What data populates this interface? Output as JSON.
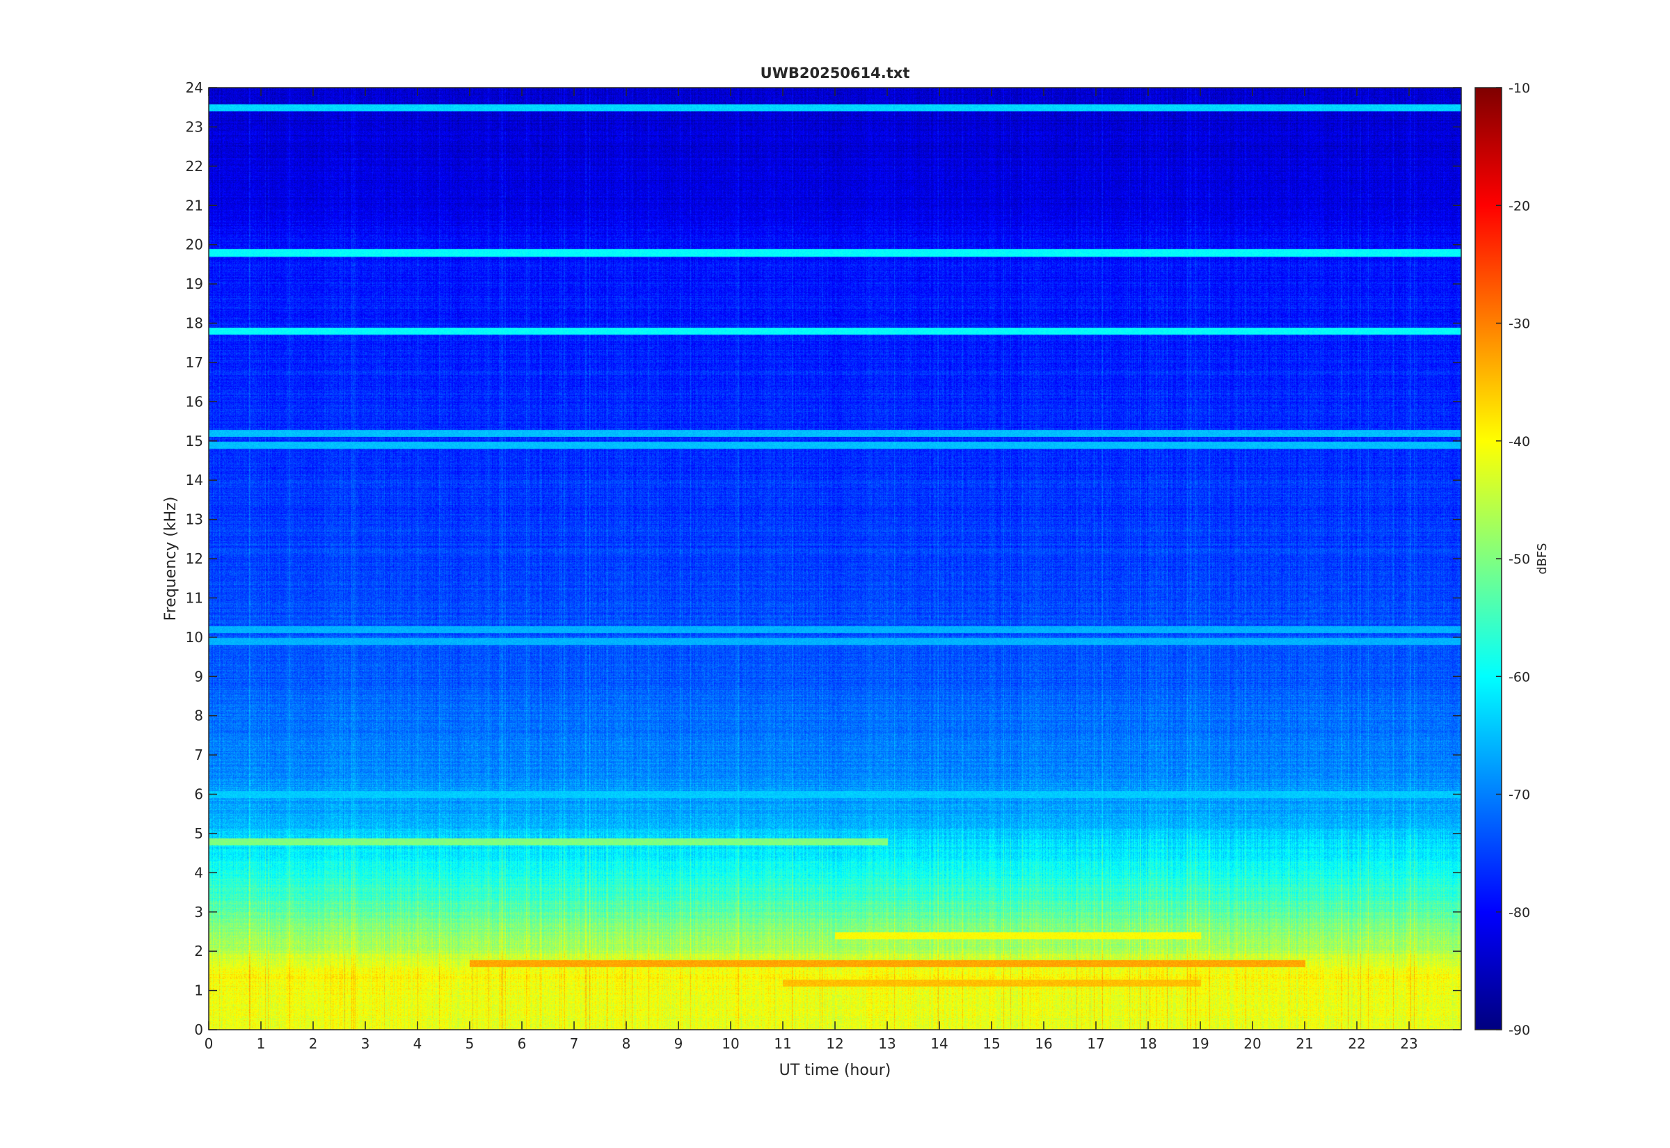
{
  "chart_data": {
    "type": "heatmap",
    "title": "UWB20250614.txt",
    "xlabel": "UT time (hour)",
    "ylabel": "Frequency (kHz)",
    "xlim": [
      0,
      24
    ],
    "ylim": [
      0,
      24
    ],
    "x_ticks": [
      "0",
      "1",
      "2",
      "3",
      "4",
      "5",
      "6",
      "7",
      "8",
      "9",
      "10",
      "11",
      "12",
      "13",
      "14",
      "15",
      "16",
      "17",
      "18",
      "19",
      "20",
      "21",
      "22",
      "23"
    ],
    "y_ticks": [
      "0",
      "1",
      "2",
      "3",
      "4",
      "5",
      "6",
      "7",
      "8",
      "9",
      "10",
      "11",
      "12",
      "13",
      "14",
      "15",
      "16",
      "17",
      "18",
      "19",
      "20",
      "21",
      "22",
      "23",
      "24"
    ],
    "colorbar": {
      "label": "dBFS",
      "range": [
        -90,
        -10
      ],
      "ticks": [
        "-10",
        "-20",
        "-30",
        "-40",
        "-50",
        "-60",
        "-70",
        "-80",
        "-90"
      ],
      "colormap": "jet"
    },
    "background_profile": [
      {
        "freq_khz": 0.0,
        "dbfs": -42
      },
      {
        "freq_khz": 0.8,
        "dbfs": -41
      },
      {
        "freq_khz": 1.5,
        "dbfs": -40
      },
      {
        "freq_khz": 2.0,
        "dbfs": -46
      },
      {
        "freq_khz": 2.6,
        "dbfs": -50
      },
      {
        "freq_khz": 3.5,
        "dbfs": -56
      },
      {
        "freq_khz": 4.5,
        "dbfs": -61
      },
      {
        "freq_khz": 5.5,
        "dbfs": -67
      },
      {
        "freq_khz": 7.0,
        "dbfs": -70
      },
      {
        "freq_khz": 9.0,
        "dbfs": -73
      },
      {
        "freq_khz": 12.0,
        "dbfs": -75
      },
      {
        "freq_khz": 16.0,
        "dbfs": -77
      },
      {
        "freq_khz": 20.0,
        "dbfs": -79
      },
      {
        "freq_khz": 21.0,
        "dbfs": -82
      },
      {
        "freq_khz": 24.0,
        "dbfs": -84
      }
    ],
    "tonal_lines": [
      {
        "freq_khz": 19.8,
        "dbfs": -60,
        "t_start": 0,
        "t_end": 24
      },
      {
        "freq_khz": 23.5,
        "dbfs": -63,
        "t_start": 0,
        "t_end": 24
      },
      {
        "freq_khz": 17.8,
        "dbfs": -60,
        "t_start": 0,
        "t_end": 24
      },
      {
        "freq_khz": 15.2,
        "dbfs": -65,
        "t_start": 0,
        "t_end": 24
      },
      {
        "freq_khz": 14.9,
        "dbfs": -65,
        "t_start": 0,
        "t_end": 24
      },
      {
        "freq_khz": 10.2,
        "dbfs": -66,
        "t_start": 0,
        "t_end": 24
      },
      {
        "freq_khz": 9.9,
        "dbfs": -66,
        "t_start": 0,
        "t_end": 24
      },
      {
        "freq_khz": 6.0,
        "dbfs": -64,
        "t_start": 0,
        "t_end": 24
      },
      {
        "freq_khz": 1.7,
        "dbfs": -33,
        "t_start": 5,
        "t_end": 21
      },
      {
        "freq_khz": 1.2,
        "dbfs": -35,
        "t_start": 11,
        "t_end": 19
      },
      {
        "freq_khz": 2.4,
        "dbfs": -40,
        "t_start": 12,
        "t_end": 19
      },
      {
        "freq_khz": 4.8,
        "dbfs": -50,
        "t_start": 0,
        "t_end": 13
      }
    ]
  }
}
